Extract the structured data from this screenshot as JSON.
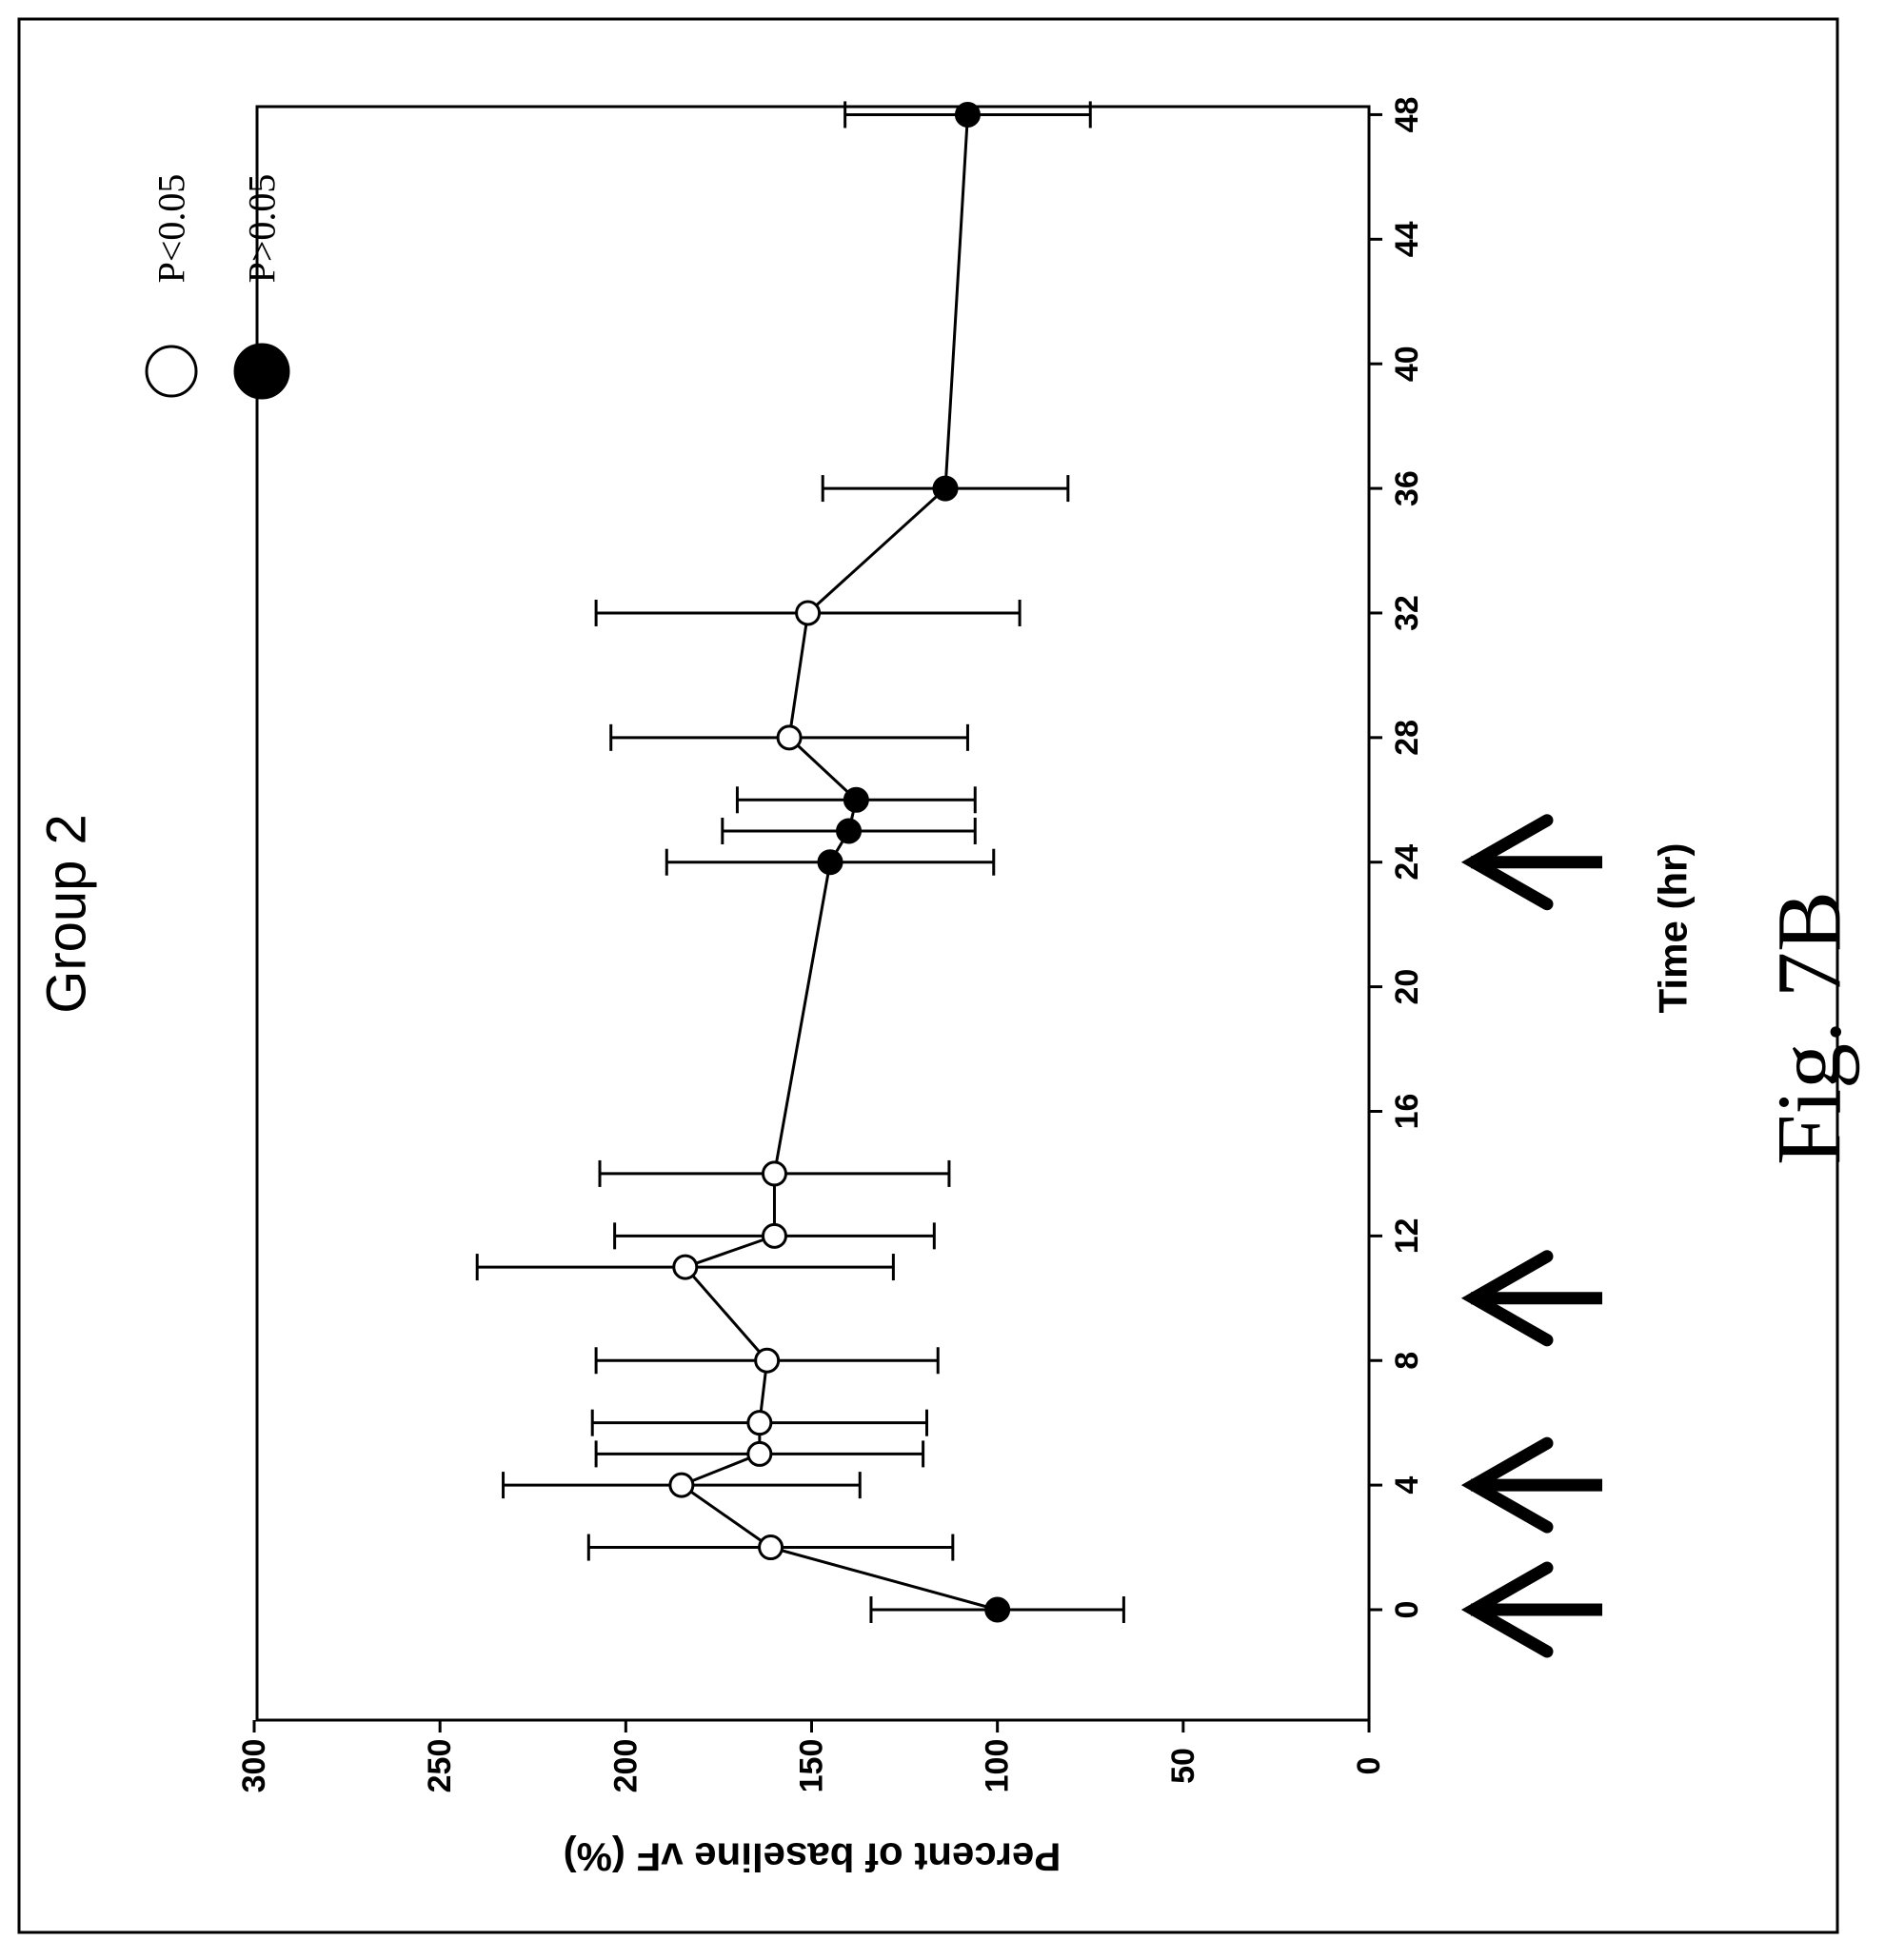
{
  "chart_data": {
    "type": "line",
    "title": "Group 2",
    "xlabel": "Time (hr)",
    "ylabel": "Percent of baseline vF (%)",
    "xlim": [
      -4,
      48
    ],
    "ylim": [
      0,
      300
    ],
    "x_ticks": [
      "0",
      "4",
      "8",
      "12",
      "16",
      "20",
      "24",
      "28",
      "32",
      "36",
      "40",
      "44",
      "48"
    ],
    "y_ticks": [
      "0",
      "50",
      "100",
      "150",
      "200",
      "250",
      "300"
    ],
    "grid": false,
    "orientation": "figure rotated 90 degrees counter-clockwise",
    "legend": {
      "placement": "top-right",
      "entries": [
        {
          "label": "P<0.05",
          "marker": "open-circle"
        },
        {
          "label": "P>0.05",
          "marker": "filled-circle"
        }
      ]
    },
    "series": [
      {
        "points": [
          {
            "x": 0,
            "y": 100,
            "err": 34,
            "significant": false
          },
          {
            "x": 2,
            "y": 161,
            "err": 49,
            "significant": true
          },
          {
            "x": 4,
            "y": 185,
            "err": 48,
            "significant": true
          },
          {
            "x": 5,
            "y": 164,
            "err": 44,
            "significant": true
          },
          {
            "x": 6,
            "y": 164,
            "err": 45,
            "significant": true
          },
          {
            "x": 8,
            "y": 162,
            "err": 46,
            "significant": true
          },
          {
            "x": 11,
            "y": 184,
            "err": 56,
            "significant": true
          },
          {
            "x": 12,
            "y": 160,
            "err": 43,
            "significant": true
          },
          {
            "x": 14,
            "y": 160,
            "err": 47,
            "significant": true
          },
          {
            "x": 24,
            "y": 145,
            "err": 44,
            "significant": false
          },
          {
            "x": 25,
            "y": 140,
            "err": 34,
            "significant": false
          },
          {
            "x": 26,
            "y": 138,
            "err": 32,
            "significant": false
          },
          {
            "x": 28,
            "y": 156,
            "err": 48,
            "significant": true
          },
          {
            "x": 32,
            "y": 151,
            "err": 57,
            "significant": true
          },
          {
            "x": 36,
            "y": 114,
            "err": 33,
            "significant": false
          },
          {
            "x": 48,
            "y": 108,
            "err": 33,
            "significant": false
          }
        ]
      }
    ],
    "annotations": {
      "arrows_at_x": [
        0,
        4,
        10,
        24
      ]
    }
  },
  "figure_label": "Fig. 7B"
}
